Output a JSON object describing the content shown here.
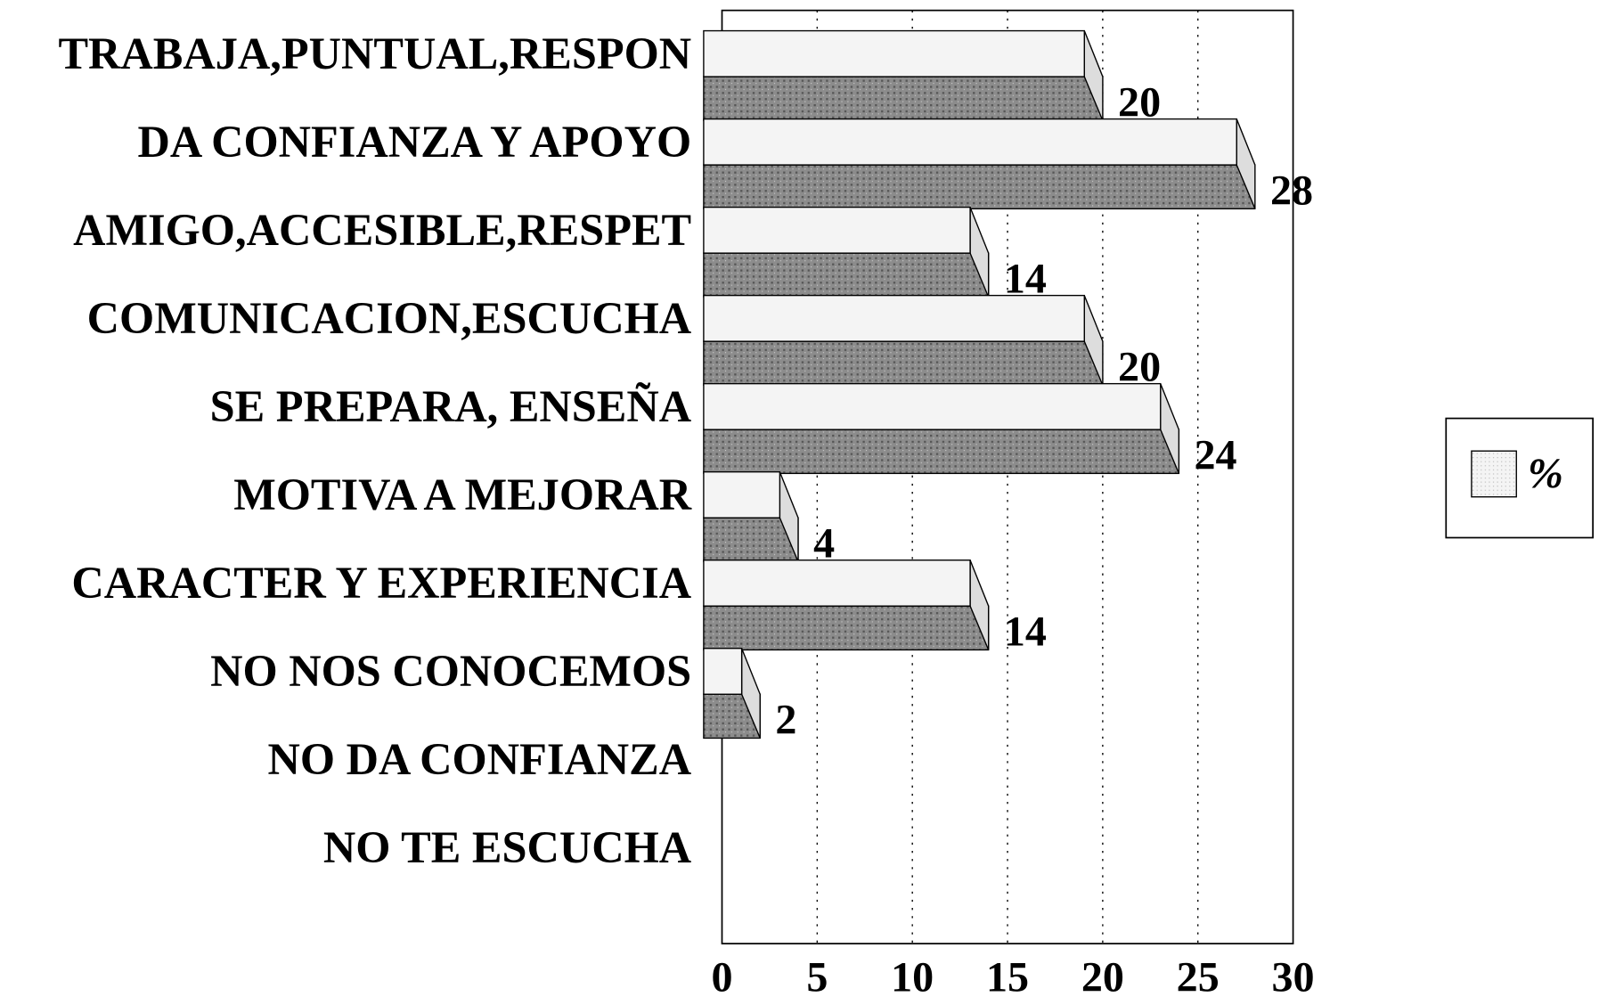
{
  "chart_data": {
    "type": "bar",
    "orientation": "horizontal",
    "categories": [
      "TRABAJA,PUNTUAL,RESPON",
      "DA CONFIANZA Y APOYO",
      "AMIGO,ACCESIBLE,RESPET",
      "COMUNICACION,ESCUCHA",
      "SE PREPARA, ENSEÑA",
      "MOTIVA A MEJORAR",
      "CARACTER Y EXPERIENCIA",
      "NO NOS CONOCEMOS",
      "NO DA CONFIANZA",
      "NO TE ESCUCHA"
    ],
    "series": [
      {
        "name": "%",
        "color": "#f4f4f4",
        "values": [
          20,
          28,
          14,
          20,
          24,
          4,
          14,
          2,
          0,
          0
        ]
      }
    ],
    "xlim": [
      0,
      30
    ],
    "xticks": [
      0,
      5,
      10,
      15,
      20,
      25,
      30
    ],
    "grid": true,
    "legend": "right"
  }
}
